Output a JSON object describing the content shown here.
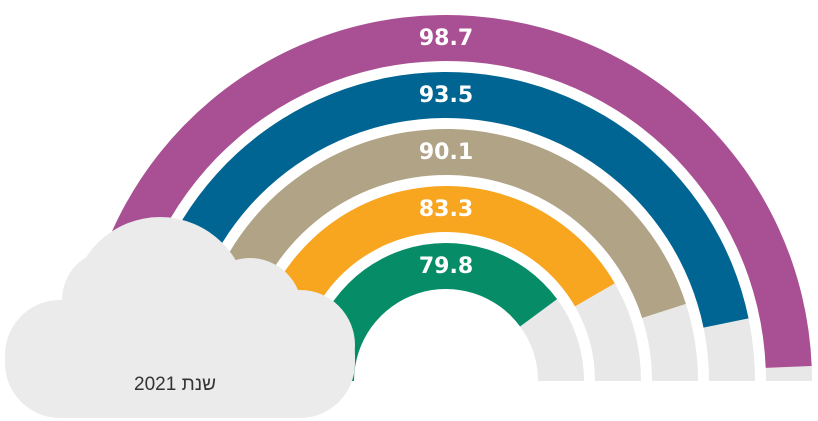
{
  "chart_data": {
    "type": "radial_bar",
    "values": [
      98.7,
      93.5,
      90.1,
      83.3,
      79.8
    ],
    "colors": [
      "#a94f93",
      "#006593",
      "#b0a386",
      "#f8a51f",
      "#068d67"
    ],
    "track_color": "#e8e8e8",
    "ylim": [
      0,
      100
    ],
    "annotation": "שנת 2021"
  }
}
